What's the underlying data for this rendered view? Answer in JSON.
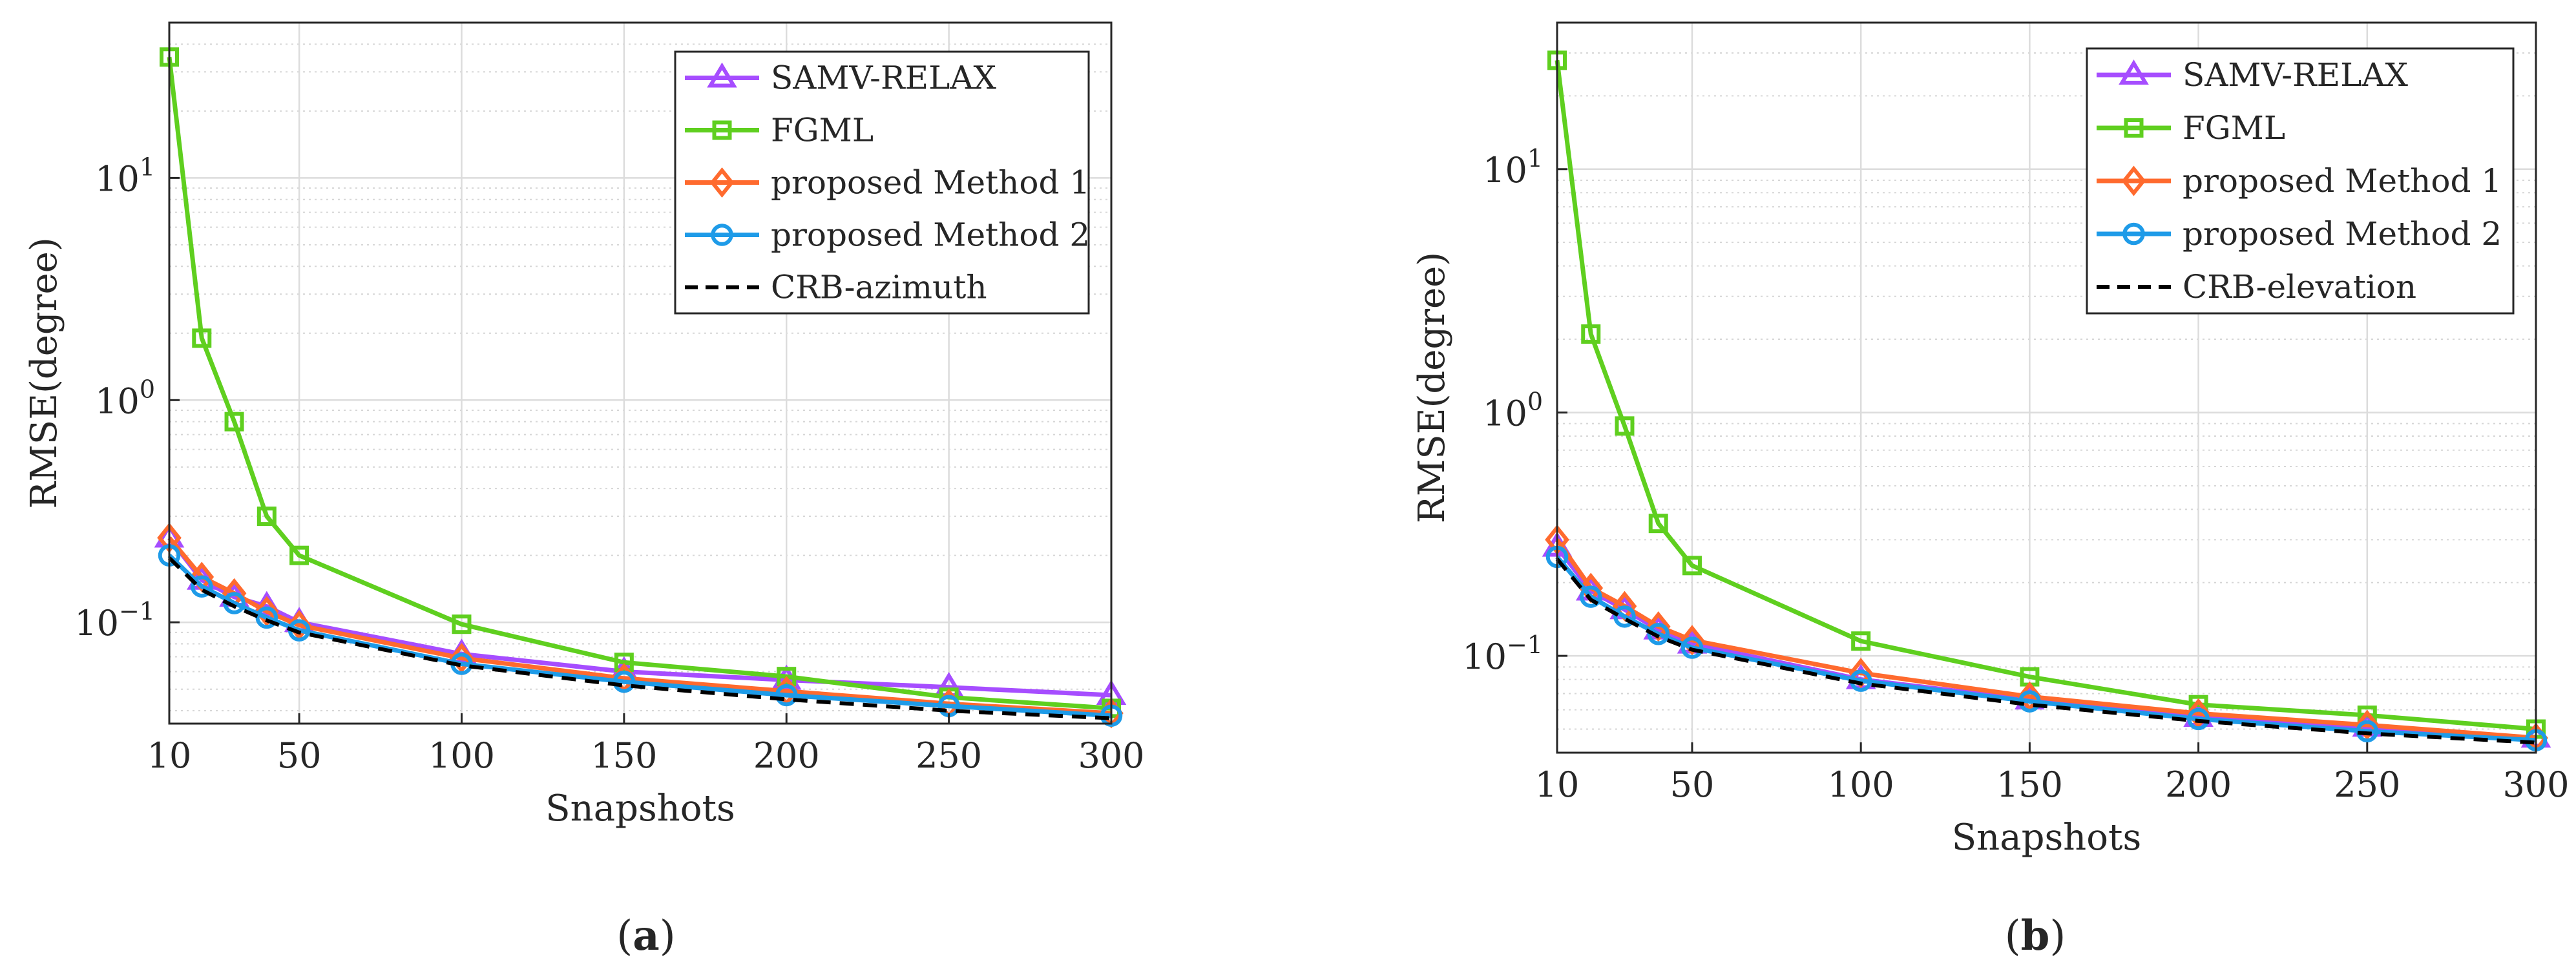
{
  "figure": {
    "panels": [
      {
        "label_open": "(",
        "label_letter": "a",
        "label_close": ")"
      },
      {
        "label_open": "(",
        "label_letter": "b",
        "label_close": ")"
      }
    ]
  },
  "colors": {
    "samv": "#a64dff",
    "fgml": "#5fcf1f",
    "m1": "#ff6a2e",
    "m2": "#1e9be8",
    "crb": "#000000"
  },
  "chart_data": [
    {
      "type": "line",
      "yscale": "log",
      "xlabel": "Snapshots",
      "ylabel": "RMSE(degree)",
      "xlim": [
        10,
        300
      ],
      "ylim": [
        0.035,
        50
      ],
      "xticks": [
        10,
        50,
        100,
        150,
        200,
        250,
        300
      ],
      "yticks": [
        {
          "value": 0.1,
          "base": "10",
          "exp": "−1"
        },
        {
          "value": 1,
          "base": "10",
          "exp": "0"
        },
        {
          "value": 10,
          "base": "10",
          "exp": "1"
        }
      ],
      "grid": true,
      "legend_position": "top-right",
      "x": [
        10,
        20,
        30,
        40,
        50,
        100,
        150,
        200,
        250,
        300
      ],
      "series": [
        {
          "name": "SAMV-RELAX",
          "color_key": "samv",
          "marker": "triangle",
          "dashed": false,
          "values": [
            0.24,
            0.155,
            0.13,
            0.118,
            0.1,
            0.072,
            0.06,
            0.055,
            0.051,
            0.047
          ]
        },
        {
          "name": "FGML",
          "color_key": "fgml",
          "marker": "square",
          "dashed": false,
          "values": [
            35,
            1.9,
            0.8,
            0.3,
            0.2,
            0.098,
            0.066,
            0.057,
            0.046,
            0.041
          ]
        },
        {
          "name": "proposed Method 1",
          "color_key": "m1",
          "marker": "diamond",
          "dashed": false,
          "values": [
            0.24,
            0.16,
            0.135,
            0.112,
            0.097,
            0.069,
            0.056,
            0.049,
            0.043,
            0.039
          ]
        },
        {
          "name": "proposed Method 2",
          "color_key": "m2",
          "marker": "circle",
          "dashed": false,
          "values": [
            0.2,
            0.145,
            0.122,
            0.105,
            0.092,
            0.065,
            0.054,
            0.047,
            0.042,
            0.038
          ]
        },
        {
          "name": "CRB-azimuth",
          "color_key": "crb",
          "marker": "none",
          "dashed": true,
          "values": [
            0.195,
            0.14,
            0.118,
            0.102,
            0.09,
            0.064,
            0.052,
            0.045,
            0.04,
            0.037
          ]
        }
      ]
    },
    {
      "type": "line",
      "yscale": "log",
      "xlabel": "Snapshots",
      "ylabel": "RMSE(degree)",
      "xlim": [
        10,
        300
      ],
      "ylim": [
        0.04,
        40
      ],
      "xticks": [
        10,
        50,
        100,
        150,
        200,
        250,
        300
      ],
      "yticks": [
        {
          "value": 0.1,
          "base": "10",
          "exp": "−1"
        },
        {
          "value": 1,
          "base": "10",
          "exp": "0"
        },
        {
          "value": 10,
          "base": "10",
          "exp": "1"
        }
      ],
      "grid": true,
      "legend_position": "top-right",
      "x": [
        10,
        20,
        30,
        40,
        50,
        100,
        150,
        200,
        250,
        300
      ],
      "series": [
        {
          "name": "SAMV-RELAX",
          "color_key": "samv",
          "marker": "triangle",
          "dashed": false,
          "values": [
            0.28,
            0.185,
            0.155,
            0.128,
            0.112,
            0.08,
            0.066,
            0.056,
            0.051,
            0.046
          ]
        },
        {
          "name": "FGML",
          "color_key": "fgml",
          "marker": "square",
          "dashed": false,
          "values": [
            28,
            2.1,
            0.88,
            0.35,
            0.235,
            0.115,
            0.082,
            0.063,
            0.057,
            0.05
          ]
        },
        {
          "name": "proposed Method 1",
          "color_key": "m1",
          "marker": "diamond",
          "dashed": false,
          "values": [
            0.3,
            0.19,
            0.16,
            0.132,
            0.116,
            0.085,
            0.068,
            0.058,
            0.052,
            0.046
          ]
        },
        {
          "name": "proposed Method 2",
          "color_key": "m2",
          "marker": "circle",
          "dashed": false,
          "values": [
            0.255,
            0.175,
            0.145,
            0.123,
            0.108,
            0.079,
            0.065,
            0.055,
            0.049,
            0.045
          ]
        },
        {
          "name": "CRB-elevation",
          "color_key": "crb",
          "marker": "none",
          "dashed": true,
          "values": [
            0.25,
            0.17,
            0.142,
            0.12,
            0.106,
            0.077,
            0.063,
            0.054,
            0.048,
            0.044
          ]
        }
      ]
    }
  ]
}
